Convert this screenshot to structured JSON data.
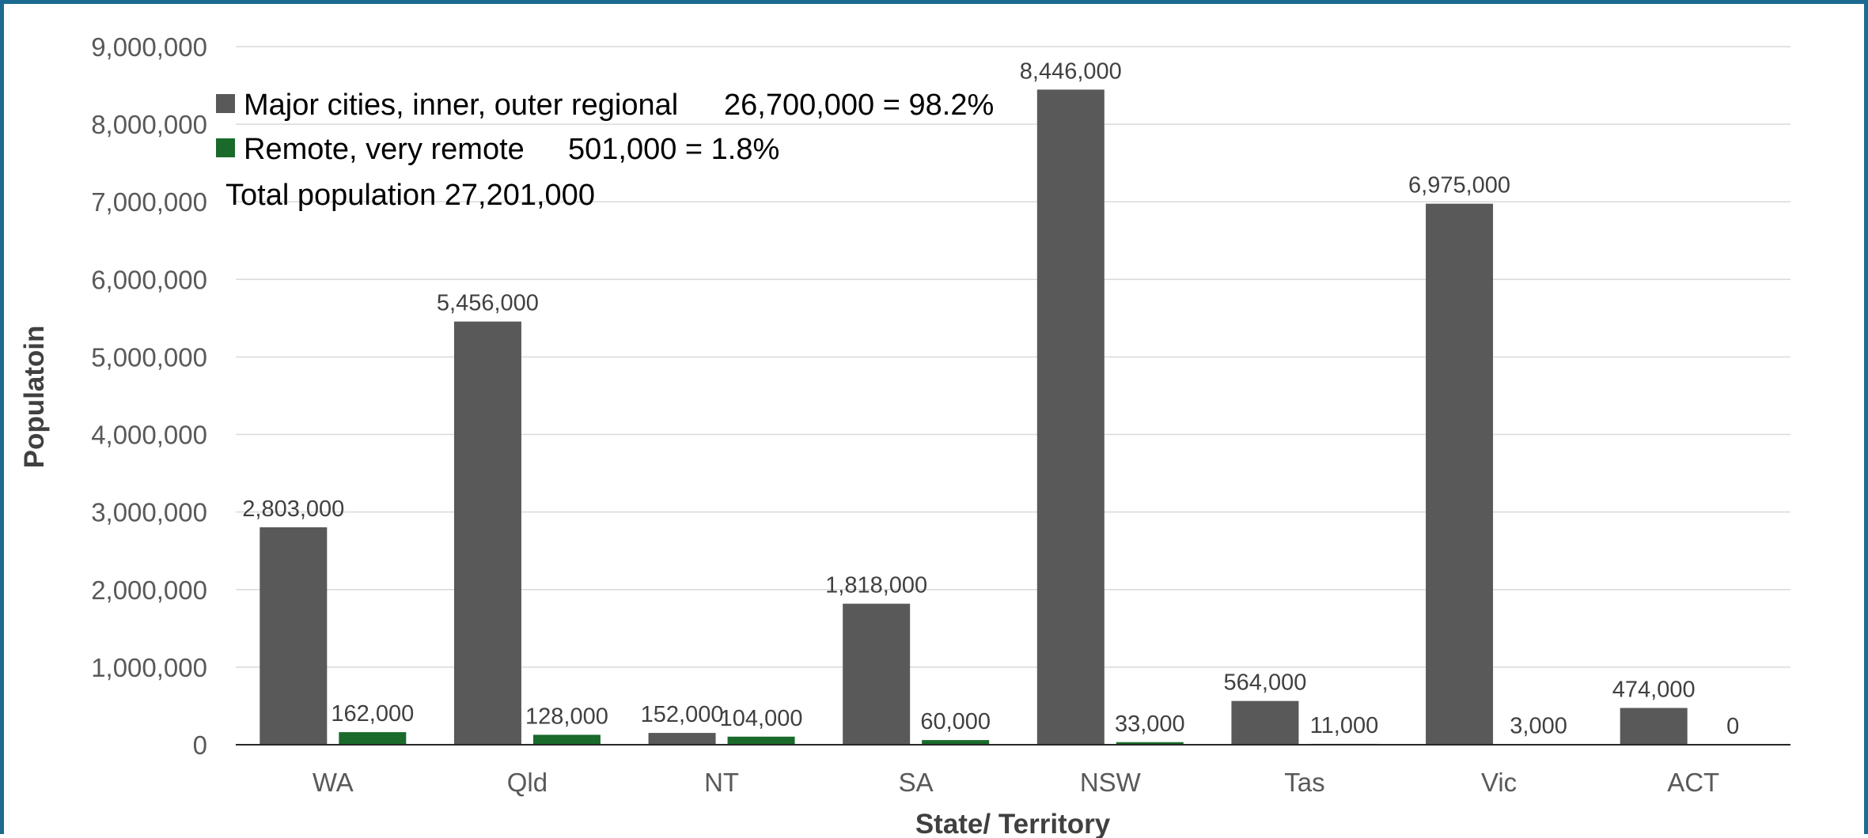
{
  "chart_data": {
    "type": "bar",
    "categories": [
      "WA",
      "Qld",
      "NT",
      "SA",
      "NSW",
      "Tas",
      "Vic",
      "ACT"
    ],
    "series": [
      {
        "name": "Major cities, inner, outer regional",
        "color": "#595959",
        "values": [
          2803000,
          5456000,
          152000,
          1818000,
          8446000,
          564000,
          6975000,
          474000
        ],
        "labels": [
          "2,803,000",
          "5,456,000",
          "152,000",
          "1,818,000",
          "8,446,000",
          "564,000",
          "6,975,000",
          "474,000"
        ]
      },
      {
        "name": "Remote, very remote",
        "color": "#1a6b2b",
        "values": [
          162000,
          128000,
          104000,
          60000,
          33000,
          11000,
          3000,
          0
        ],
        "labels": [
          "162,000",
          "128,000",
          "104,000",
          "60,000",
          "33,000",
          "11,000",
          "3,000",
          "0"
        ]
      }
    ],
    "xlabel": "State/ Territory",
    "ylabel": "Populatoin",
    "ylim": [
      0,
      9000000
    ],
    "yticks": [
      "0",
      "1,000,000",
      "2,000,000",
      "3,000,000",
      "4,000,000",
      "5,000,000",
      "6,000,000",
      "7,000,000",
      "8,000,000",
      "9,000,000"
    ],
    "ytick_values": [
      0,
      1000000,
      2000000,
      3000000,
      4000000,
      5000000,
      6000000,
      7000000,
      8000000,
      9000000
    ],
    "grid": true,
    "legend_position": "top-left",
    "legend_annotations": [
      "26,700,000 = 98.2%",
      "501,000 = 1.8%"
    ],
    "annotation": "Total population 27,201,000"
  }
}
